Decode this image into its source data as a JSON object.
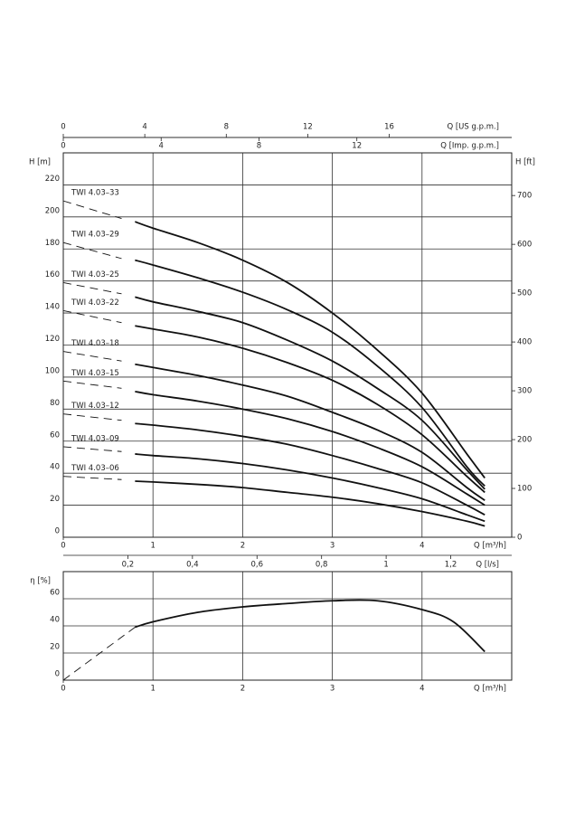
{
  "chart_data": [
    {
      "type": "line",
      "x_label": "Q [m³/h]",
      "xlim": [
        0,
        5
      ],
      "xticks": [
        0,
        1,
        2,
        3,
        4
      ],
      "y_label": "H [m]",
      "ylim": [
        0,
        240
      ],
      "yticks": [
        0,
        20,
        40,
        60,
        80,
        100,
        120,
        140,
        160,
        180,
        200,
        220
      ],
      "y2_label": "H [ft]",
      "y2lim": [
        0,
        787.4
      ],
      "y2ticks": [
        0,
        100,
        200,
        300,
        400,
        500,
        600,
        700
      ],
      "grid": true,
      "color": "#111111",
      "extra_x_axes": [
        {
          "label": "Q [l/s]",
          "position": "bottom",
          "lim": [
            0,
            1.3889
          ],
          "ticks": [
            {
              "value": 0.2,
              "label": "0,2"
            },
            {
              "value": 0.4,
              "label": "0,4"
            },
            {
              "value": 0.6,
              "label": "0,6"
            },
            {
              "value": 0.8,
              "label": "0,8"
            },
            1,
            {
              "value": 1.2,
              "label": "1,2"
            }
          ]
        },
        {
          "label": "Q [US g.p.m.]",
          "position": "top",
          "lim": [
            0,
            22.01
          ],
          "ticks": [
            0,
            4,
            8,
            12,
            16
          ]
        },
        {
          "label": "Q [Imp. g.p.m.]",
          "position": "top-inner",
          "lim": [
            0,
            18.33
          ],
          "ticks": [
            0,
            4,
            8,
            12
          ]
        }
      ],
      "series": [
        {
          "name": "TWI 4.03–33",
          "x": [
            0.8,
            1,
            1.5,
            2,
            2.5,
            3,
            3.5,
            4,
            4.5,
            4.7
          ],
          "values": [
            197,
            193,
            184,
            173,
            159,
            140,
            117,
            90,
            52,
            37
          ],
          "dashed": {
            "x": [
              0,
              0.65
            ],
            "values": [
              210,
              199
            ]
          }
        },
        {
          "name": "TWI 4.03–29",
          "x": [
            0.8,
            1,
            1.5,
            2,
            2.5,
            3,
            3.5,
            4,
            4.5,
            4.7
          ],
          "values": [
            173,
            170,
            162,
            153,
            142,
            128,
            107,
            81,
            44,
            32
          ],
          "dashed": {
            "x": [
              0,
              0.65
            ],
            "values": [
              184,
              174
            ]
          }
        },
        {
          "name": "TWI 4.03–25",
          "x": [
            0.8,
            1,
            1.5,
            2,
            2.5,
            3,
            3.5,
            4,
            4.5,
            4.7
          ],
          "values": [
            150,
            147,
            141,
            134,
            123,
            110,
            93,
            73,
            42,
            30
          ],
          "dashed": {
            "x": [
              0,
              0.65
            ],
            "values": [
              159,
              152
            ]
          }
        },
        {
          "name": "TWI 4.03–22",
          "x": [
            0.8,
            1,
            1.5,
            2,
            2.5,
            3,
            3.5,
            4,
            4.5,
            4.7
          ],
          "values": [
            132,
            130,
            125,
            118,
            109,
            98,
            83,
            64,
            38,
            28
          ],
          "dashed": {
            "x": [
              0,
              0.65
            ],
            "values": [
              141.5,
              134
            ]
          }
        },
        {
          "name": "TWI 4.03–18",
          "x": [
            0.8,
            1,
            1.5,
            2,
            2.5,
            3,
            3.5,
            4,
            4.5,
            4.7
          ],
          "values": [
            108,
            106,
            101,
            95,
            88,
            78,
            67,
            53,
            31,
            23
          ],
          "dashed": {
            "x": [
              0,
              0.65
            ],
            "values": [
              116,
              110
            ]
          }
        },
        {
          "name": "TWI 4.03–15",
          "x": [
            0.8,
            1,
            1.5,
            2,
            2.5,
            3,
            3.5,
            4,
            4.5,
            4.7
          ],
          "values": [
            91,
            89,
            85,
            80,
            74,
            66,
            56,
            44,
            27,
            20
          ],
          "dashed": {
            "x": [
              0,
              0.65
            ],
            "values": [
              97.5,
              93
            ]
          }
        },
        {
          "name": "TWI 4.03–12",
          "x": [
            0.8,
            1,
            1.5,
            2,
            2.5,
            3,
            3.5,
            4,
            4.5,
            4.7
          ],
          "values": [
            71,
            70,
            67,
            63,
            58,
            51,
            43,
            34,
            20,
            14
          ],
          "dashed": {
            "x": [
              0,
              0.65
            ],
            "values": [
              77,
              73
            ]
          }
        },
        {
          "name": "TWI 4.03–09",
          "x": [
            0.8,
            1,
            1.5,
            2,
            2.5,
            3,
            3.5,
            4,
            4.5,
            4.7
          ],
          "values": [
            52,
            51,
            49,
            46,
            42,
            37,
            31,
            24,
            14,
            10
          ],
          "dashed": {
            "x": [
              0,
              0.65
            ],
            "values": [
              56.5,
              53.5
            ]
          }
        },
        {
          "name": "TWI 4.03–06",
          "x": [
            0.8,
            1,
            1.5,
            2,
            2.5,
            3,
            3.5,
            4,
            4.5,
            4.7
          ],
          "values": [
            35,
            34.5,
            33,
            31,
            28,
            25,
            21,
            16,
            10,
            7
          ],
          "dashed": {
            "x": [
              0,
              0.65
            ],
            "values": [
              38,
              36
            ]
          }
        }
      ]
    },
    {
      "type": "line",
      "x_label": "Q [m³/h]",
      "xlim": [
        0,
        5
      ],
      "xticks": [
        0,
        1,
        2,
        3,
        4
      ],
      "y_label": "η [%]",
      "ylim": [
        0,
        80
      ],
      "yticks": [
        0,
        20,
        40,
        60
      ],
      "grid": true,
      "color": "#111111",
      "series": [
        {
          "x": [
            0.8,
            1,
            1.5,
            2,
            2.5,
            3,
            3.5,
            4,
            4.35,
            4.7
          ],
          "values": [
            39,
            43,
            50,
            54,
            56.5,
            58.5,
            58.5,
            52,
            43,
            21
          ],
          "dashed": {
            "x": [
              0,
              0.8
            ],
            "values": [
              0,
              39
            ]
          }
        }
      ]
    }
  ]
}
